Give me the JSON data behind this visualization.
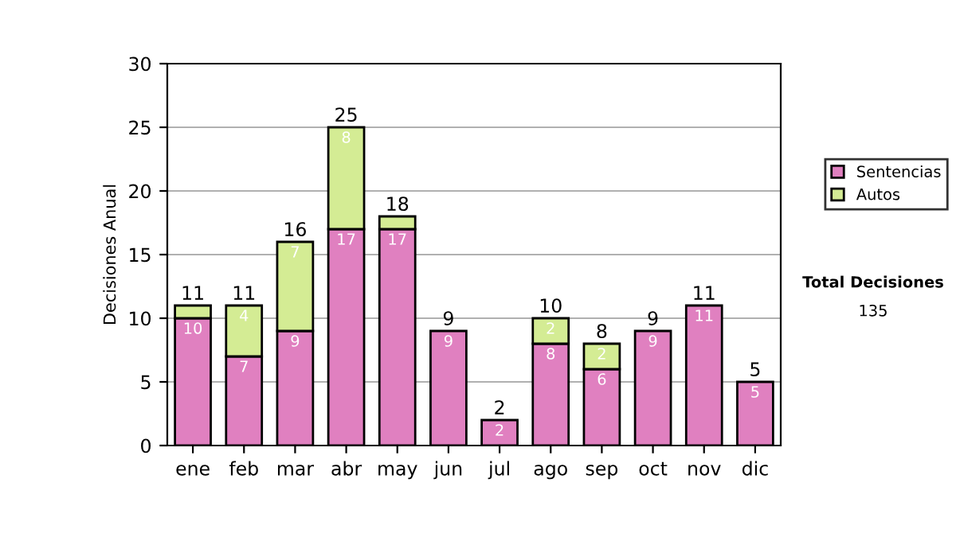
{
  "chart_data": {
    "type": "bar",
    "stacked": true,
    "ylabel": "Decisiones Anual",
    "categories": [
      "ene",
      "feb",
      "mar",
      "abr",
      "may",
      "jun",
      "jul",
      "ago",
      "sep",
      "oct",
      "nov",
      "dic"
    ],
    "series": [
      {
        "name": "Sentencias",
        "color": "#e080c0",
        "values": [
          10,
          7,
          9,
          17,
          17,
          9,
          2,
          8,
          6,
          9,
          11,
          5
        ],
        "value_labels": [
          "10",
          "7",
          "9",
          "17",
          "17",
          "9",
          "2",
          "8",
          "6",
          "9",
          "11",
          "5"
        ]
      },
      {
        "name": "Autos",
        "color": "#d4ec94",
        "values": [
          1,
          4,
          7,
          8,
          1,
          null,
          null,
          2,
          2,
          null,
          null,
          null
        ],
        "value_labels": [
          null,
          "4",
          "7",
          "8",
          null,
          null,
          null,
          "2",
          "2",
          null,
          null,
          null
        ]
      }
    ],
    "totals": [
      "11",
      "11",
      "16",
      "25",
      "18",
      "9",
      "2",
      "10",
      "8",
      "9",
      "11",
      "5"
    ],
    "ylim": [
      0,
      30
    ],
    "yticks": [
      0,
      5,
      10,
      15,
      20,
      25,
      30
    ],
    "grid": "y",
    "legend": "right",
    "annotations": [
      "Total Decisiones",
      "135"
    ]
  }
}
